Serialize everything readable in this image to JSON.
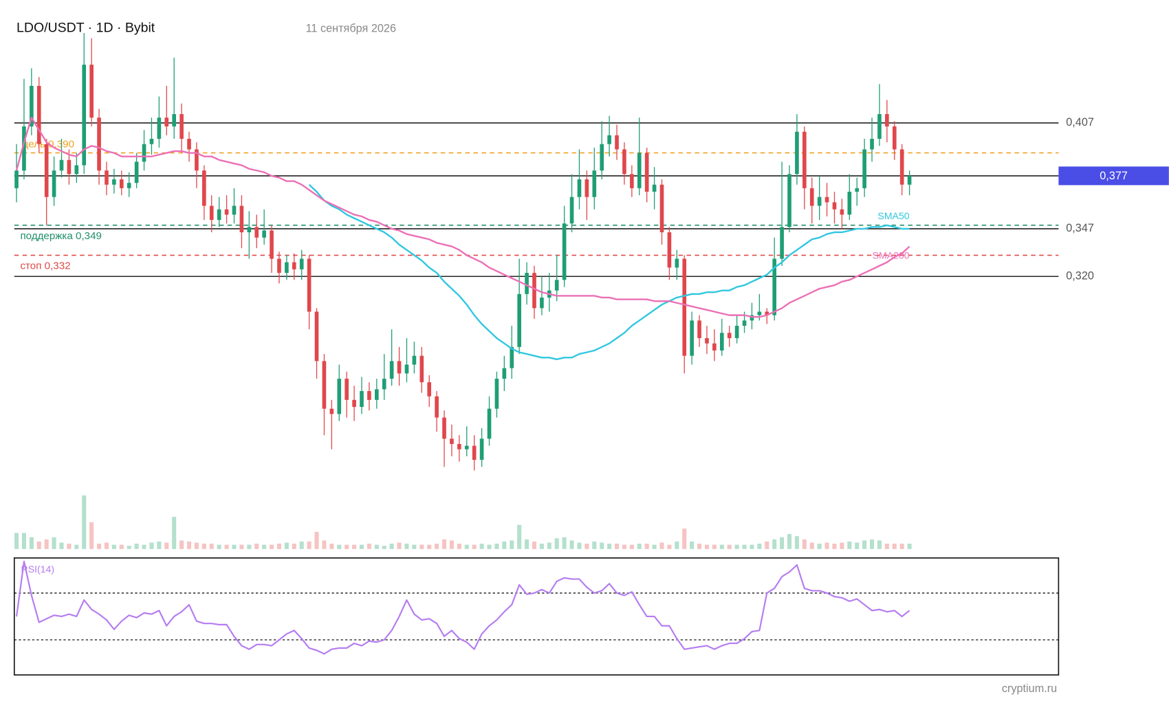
{
  "chart_data": {
    "type": "candlestick",
    "title": "LDO/USDT · 1D · Bybit",
    "subtitle": "11 сентября 2026",
    "source": "cryptium.ru",
    "ylim": [
      0.2,
      0.46
    ],
    "yticks": [
      {
        "value": 0.407,
        "label": "0,407"
      },
      {
        "value": 0.347,
        "label": "0,347"
      },
      {
        "value": 0.32,
        "label": "0,320"
      }
    ],
    "grid": true,
    "last_price": {
      "value": 0.377,
      "label": "0,377",
      "color": "#4a4de6"
    },
    "up_color": "#1f9e75",
    "down_color": "#e0474c",
    "levels": [
      {
        "label": "цель 0,390",
        "value": 0.39,
        "color": "#f0a020"
      },
      {
        "label": "поддержка 0,349",
        "value": 0.349,
        "color": "#1f8f6a"
      },
      {
        "label": "стоп 0,332",
        "value": 0.332,
        "color": "#e04848"
      }
    ],
    "candles": [
      [
        0.37,
        0.395,
        0.362,
        0.38
      ],
      [
        0.38,
        0.432,
        0.375,
        0.405
      ],
      [
        0.405,
        0.438,
        0.4,
        0.428
      ],
      [
        0.428,
        0.433,
        0.39,
        0.395
      ],
      [
        0.395,
        0.398,
        0.349,
        0.365
      ],
      [
        0.365,
        0.388,
        0.36,
        0.38
      ],
      [
        0.38,
        0.398,
        0.376,
        0.386
      ],
      [
        0.386,
        0.392,
        0.372,
        0.378
      ],
      [
        0.378,
        0.39,
        0.373,
        0.383
      ],
      [
        0.383,
        0.458,
        0.378,
        0.44
      ],
      [
        0.44,
        0.455,
        0.405,
        0.41
      ],
      [
        0.41,
        0.415,
        0.372,
        0.38
      ],
      [
        0.38,
        0.385,
        0.366,
        0.372
      ],
      [
        0.372,
        0.381,
        0.367,
        0.375
      ],
      [
        0.375,
        0.38,
        0.366,
        0.37
      ],
      [
        0.37,
        0.379,
        0.365,
        0.373
      ],
      [
        0.373,
        0.39,
        0.37,
        0.385
      ],
      [
        0.385,
        0.403,
        0.38,
        0.395
      ],
      [
        0.395,
        0.41,
        0.389,
        0.398
      ],
      [
        0.398,
        0.422,
        0.393,
        0.41
      ],
      [
        0.41,
        0.428,
        0.4,
        0.405
      ],
      [
        0.405,
        0.444,
        0.398,
        0.412
      ],
      [
        0.412,
        0.418,
        0.39,
        0.398
      ],
      [
        0.398,
        0.402,
        0.385,
        0.392
      ],
      [
        0.392,
        0.396,
        0.37,
        0.38
      ],
      [
        0.38,
        0.383,
        0.352,
        0.36
      ],
      [
        0.36,
        0.366,
        0.345,
        0.352
      ],
      [
        0.352,
        0.365,
        0.348,
        0.358
      ],
      [
        0.358,
        0.366,
        0.35,
        0.355
      ],
      [
        0.355,
        0.37,
        0.35,
        0.36
      ],
      [
        0.36,
        0.366,
        0.336,
        0.345
      ],
      [
        0.345,
        0.357,
        0.33,
        0.348
      ],
      [
        0.348,
        0.355,
        0.336,
        0.342
      ],
      [
        0.342,
        0.358,
        0.338,
        0.346
      ],
      [
        0.346,
        0.349,
        0.322,
        0.33
      ],
      [
        0.33,
        0.334,
        0.316,
        0.322
      ],
      [
        0.322,
        0.332,
        0.318,
        0.328
      ],
      [
        0.328,
        0.333,
        0.318,
        0.324
      ],
      [
        0.324,
        0.335,
        0.318,
        0.33
      ],
      [
        0.33,
        0.332,
        0.29,
        0.3
      ],
      [
        0.3,
        0.302,
        0.262,
        0.272
      ],
      [
        0.272,
        0.276,
        0.23,
        0.245
      ],
      [
        0.245,
        0.25,
        0.222,
        0.242
      ],
      [
        0.242,
        0.27,
        0.238,
        0.262
      ],
      [
        0.262,
        0.266,
        0.24,
        0.25
      ],
      [
        0.25,
        0.258,
        0.238,
        0.246
      ],
      [
        0.246,
        0.263,
        0.242,
        0.255
      ],
      [
        0.255,
        0.26,
        0.244,
        0.25
      ],
      [
        0.25,
        0.262,
        0.245,
        0.256
      ],
      [
        0.256,
        0.276,
        0.25,
        0.262
      ],
      [
        0.262,
        0.29,
        0.258,
        0.272
      ],
      [
        0.272,
        0.28,
        0.258,
        0.265
      ],
      [
        0.265,
        0.285,
        0.26,
        0.27
      ],
      [
        0.27,
        0.283,
        0.265,
        0.275
      ],
      [
        0.275,
        0.28,
        0.254,
        0.26
      ],
      [
        0.26,
        0.264,
        0.246,
        0.252
      ],
      [
        0.252,
        0.255,
        0.232,
        0.24
      ],
      [
        0.24,
        0.244,
        0.212,
        0.228
      ],
      [
        0.228,
        0.236,
        0.218,
        0.225
      ],
      [
        0.225,
        0.23,
        0.215,
        0.222
      ],
      [
        0.222,
        0.235,
        0.218,
        0.224
      ],
      [
        0.224,
        0.23,
        0.21,
        0.216
      ],
      [
        0.216,
        0.234,
        0.212,
        0.228
      ],
      [
        0.228,
        0.252,
        0.224,
        0.245
      ],
      [
        0.245,
        0.266,
        0.24,
        0.262
      ],
      [
        0.262,
        0.275,
        0.255,
        0.268
      ],
      [
        0.268,
        0.292,
        0.262,
        0.28
      ],
      [
        0.28,
        0.33,
        0.276,
        0.31
      ],
      [
        0.31,
        0.328,
        0.304,
        0.322
      ],
      [
        0.322,
        0.326,
        0.296,
        0.302
      ],
      [
        0.302,
        0.32,
        0.298,
        0.308
      ],
      [
        0.308,
        0.322,
        0.3,
        0.312
      ],
      [
        0.312,
        0.332,
        0.306,
        0.318
      ],
      [
        0.318,
        0.36,
        0.314,
        0.35
      ],
      [
        0.35,
        0.378,
        0.345,
        0.365
      ],
      [
        0.365,
        0.392,
        0.358,
        0.375
      ],
      [
        0.375,
        0.38,
        0.352,
        0.365
      ],
      [
        0.365,
        0.393,
        0.358,
        0.38
      ],
      [
        0.38,
        0.408,
        0.375,
        0.395
      ],
      [
        0.395,
        0.411,
        0.388,
        0.4
      ],
      [
        0.4,
        0.406,
        0.386,
        0.392
      ],
      [
        0.392,
        0.396,
        0.372,
        0.378
      ],
      [
        0.378,
        0.383,
        0.365,
        0.37
      ],
      [
        0.37,
        0.41,
        0.366,
        0.39
      ],
      [
        0.39,
        0.393,
        0.362,
        0.368
      ],
      [
        0.368,
        0.382,
        0.358,
        0.372
      ],
      [
        0.372,
        0.375,
        0.338,
        0.345
      ],
      [
        0.345,
        0.348,
        0.318,
        0.325
      ],
      [
        0.325,
        0.335,
        0.318,
        0.33
      ],
      [
        0.33,
        0.332,
        0.265,
        0.275
      ],
      [
        0.275,
        0.3,
        0.27,
        0.295
      ],
      [
        0.295,
        0.298,
        0.28,
        0.285
      ],
      [
        0.285,
        0.292,
        0.276,
        0.282
      ],
      [
        0.282,
        0.29,
        0.272,
        0.278
      ],
      [
        0.278,
        0.296,
        0.275,
        0.288
      ],
      [
        0.288,
        0.292,
        0.28,
        0.285
      ],
      [
        0.285,
        0.298,
        0.282,
        0.292
      ],
      [
        0.292,
        0.3,
        0.288,
        0.295
      ],
      [
        0.295,
        0.305,
        0.29,
        0.298
      ],
      [
        0.298,
        0.31,
        0.295,
        0.3
      ],
      [
        0.3,
        0.302,
        0.293,
        0.298
      ],
      [
        0.298,
        0.342,
        0.295,
        0.33
      ],
      [
        0.33,
        0.385,
        0.326,
        0.348
      ],
      [
        0.348,
        0.383,
        0.345,
        0.378
      ],
      [
        0.378,
        0.412,
        0.372,
        0.402
      ],
      [
        0.402,
        0.405,
        0.358,
        0.37
      ],
      [
        0.37,
        0.376,
        0.35,
        0.36
      ],
      [
        0.36,
        0.377,
        0.352,
        0.365
      ],
      [
        0.365,
        0.373,
        0.354,
        0.362
      ],
      [
        0.362,
        0.368,
        0.35,
        0.358
      ],
      [
        0.358,
        0.364,
        0.347,
        0.355
      ],
      [
        0.355,
        0.378,
        0.352,
        0.368
      ],
      [
        0.368,
        0.376,
        0.36,
        0.37
      ],
      [
        0.37,
        0.398,
        0.365,
        0.392
      ],
      [
        0.392,
        0.41,
        0.385,
        0.398
      ],
      [
        0.398,
        0.429,
        0.394,
        0.412
      ],
      [
        0.412,
        0.42,
        0.396,
        0.405
      ],
      [
        0.405,
        0.408,
        0.386,
        0.392
      ],
      [
        0.392,
        0.395,
        0.366,
        0.372
      ],
      [
        0.372,
        0.38,
        0.366,
        0.377
      ]
    ],
    "series": [
      {
        "name": "SMA50",
        "color": "#2fc7e0",
        "values": [
          null,
          null,
          null,
          null,
          null,
          null,
          null,
          null,
          null,
          null,
          null,
          null,
          null,
          null,
          null,
          null,
          null,
          null,
          null,
          null,
          null,
          null,
          null,
          null,
          null,
          null,
          null,
          null,
          null,
          null,
          null,
          null,
          null,
          null,
          null,
          null,
          null,
          null,
          null,
          0.372,
          0.368,
          0.363,
          0.36,
          0.358,
          0.355,
          0.353,
          0.351,
          0.349,
          0.347,
          0.345,
          0.342,
          0.338,
          0.335,
          0.332,
          0.329,
          0.325,
          0.322,
          0.317,
          0.313,
          0.309,
          0.304,
          0.298,
          0.293,
          0.289,
          0.285,
          0.282,
          0.279,
          0.277,
          0.276,
          0.275,
          0.274,
          0.274,
          0.273,
          0.274,
          0.274,
          0.276,
          0.277,
          0.278,
          0.28,
          0.282,
          0.285,
          0.288,
          0.292,
          0.295,
          0.298,
          0.301,
          0.304,
          0.306,
          0.308,
          0.309,
          0.31,
          0.31,
          0.311,
          0.311,
          0.312,
          0.312,
          0.314,
          0.315,
          0.317,
          0.319,
          0.321,
          0.325,
          0.328,
          0.332,
          0.335,
          0.338,
          0.341,
          0.342,
          0.344,
          0.345,
          0.345,
          0.346,
          0.347,
          0.347,
          0.348,
          0.348,
          0.349,
          0.348,
          0.347,
          0.347
        ]
      },
      {
        "name": "SMA200",
        "color": "#ec6fb5",
        "values": [
          0.38,
          0.396,
          0.41,
          0.403,
          0.396,
          0.393,
          0.391,
          0.389,
          0.388,
          0.392,
          0.394,
          0.393,
          0.391,
          0.39,
          0.388,
          0.388,
          0.388,
          0.388,
          0.388,
          0.389,
          0.39,
          0.391,
          0.391,
          0.39,
          0.39,
          0.388,
          0.388,
          0.386,
          0.385,
          0.384,
          0.383,
          0.381,
          0.38,
          0.379,
          0.377,
          0.376,
          0.374,
          0.374,
          0.372,
          0.369,
          0.366,
          0.363,
          0.361,
          0.359,
          0.357,
          0.355,
          0.354,
          0.352,
          0.351,
          0.349,
          0.347,
          0.346,
          0.344,
          0.343,
          0.342,
          0.341,
          0.339,
          0.338,
          0.337,
          0.335,
          0.332,
          0.33,
          0.328,
          0.325,
          0.323,
          0.321,
          0.319,
          0.317,
          0.315,
          0.313,
          0.311,
          0.31,
          0.309,
          0.309,
          0.309,
          0.309,
          0.309,
          0.309,
          0.308,
          0.308,
          0.307,
          0.307,
          0.307,
          0.307,
          0.307,
          0.306,
          0.306,
          0.306,
          0.305,
          0.304,
          0.303,
          0.302,
          0.301,
          0.3,
          0.299,
          0.298,
          0.298,
          0.298,
          0.297,
          0.297,
          0.298,
          0.3,
          0.302,
          0.305,
          0.307,
          0.309,
          0.311,
          0.313,
          0.314,
          0.315,
          0.317,
          0.318,
          0.32,
          0.322,
          0.324,
          0.326,
          0.328,
          0.331,
          0.333,
          0.337
        ]
      }
    ],
    "volume": {
      "ylim": [
        0,
        100
      ],
      "values": [
        30,
        30,
        22,
        14,
        18,
        22,
        12,
        10,
        8,
        100,
        50,
        10,
        12,
        8,
        8,
        6,
        10,
        8,
        12,
        14,
        12,
        60,
        16,
        14,
        12,
        10,
        10,
        8,
        8,
        8,
        8,
        8,
        10,
        8,
        8,
        10,
        12,
        10,
        14,
        14,
        32,
        16,
        10,
        8,
        8,
        8,
        8,
        10,
        8,
        6,
        10,
        12,
        10,
        8,
        8,
        8,
        10,
        18,
        16,
        10,
        8,
        8,
        10,
        8,
        10,
        14,
        16,
        45,
        18,
        14,
        10,
        12,
        20,
        22,
        16,
        12,
        10,
        14,
        12,
        10,
        10,
        8,
        8,
        10,
        10,
        8,
        12,
        8,
        14,
        38,
        14,
        10,
        8,
        8,
        8,
        8,
        8,
        8,
        8,
        10,
        14,
        18,
        22,
        28,
        24,
        18,
        12,
        10,
        12,
        10,
        12,
        14,
        12,
        16,
        18,
        16,
        10,
        10,
        10,
        10
      ]
    },
    "rsi": {
      "name": "RSI(14)",
      "color": "#b57cf0",
      "ylim": [
        0,
        100
      ],
      "levels": [
        70,
        30
      ],
      "values": [
        50,
        97,
        68,
        45,
        48,
        51,
        50,
        52,
        50,
        64,
        56,
        52,
        47,
        39,
        46,
        51,
        49,
        53,
        52,
        55,
        42,
        50,
        54,
        60,
        46,
        44,
        44,
        43,
        43,
        33,
        25,
        22,
        26,
        26,
        25,
        30,
        35,
        38,
        31,
        23,
        21,
        18,
        22,
        23,
        23,
        27,
        25,
        29,
        28,
        30,
        38,
        50,
        64,
        52,
        47,
        48,
        44,
        33,
        38,
        31,
        28,
        22,
        35,
        42,
        47,
        54,
        60,
        77,
        69,
        70,
        73,
        70,
        80,
        83,
        82,
        82,
        75,
        70,
        72,
        78,
        70,
        68,
        71,
        60,
        50,
        50,
        42,
        42,
        31,
        22,
        23,
        24,
        25,
        22,
        25,
        27,
        27,
        31,
        37,
        38,
        70,
        74,
        84,
        88,
        94,
        74,
        72,
        72,
        70,
        67,
        66,
        63,
        65,
        60,
        55,
        56,
        54,
        55,
        50,
        55
      ]
    }
  }
}
